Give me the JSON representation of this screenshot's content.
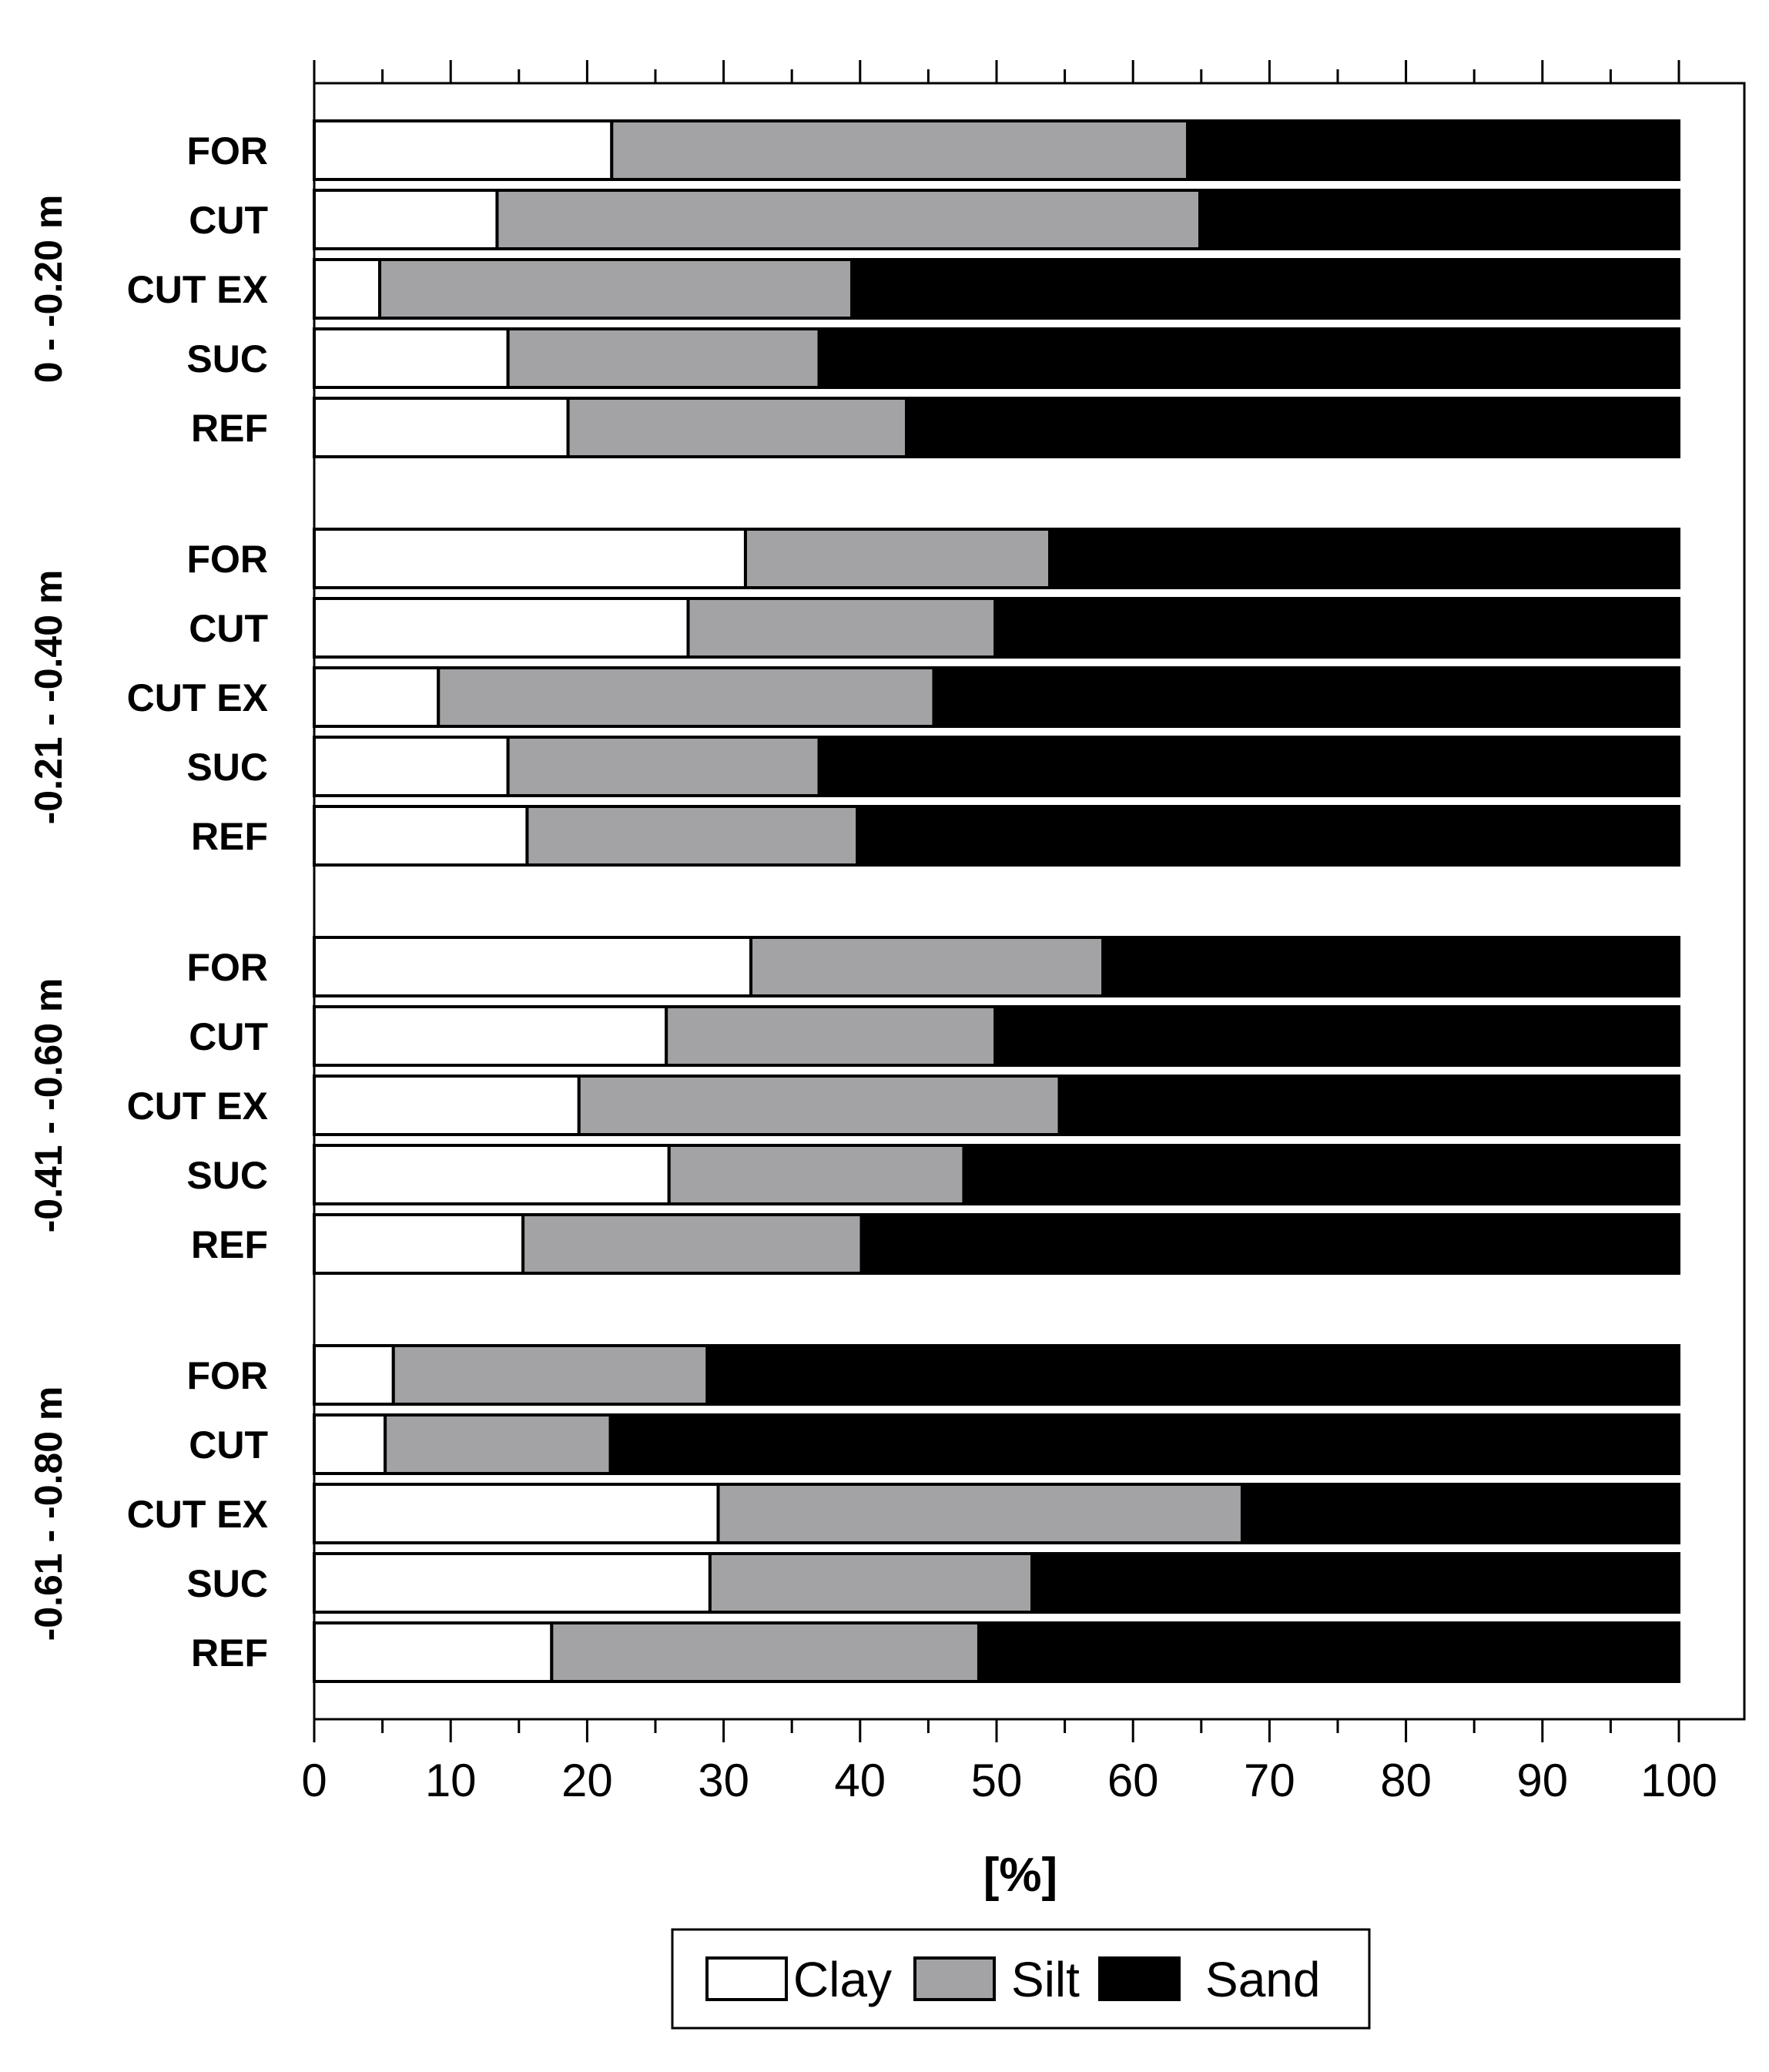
{
  "chart_data": {
    "type": "bar",
    "orientation": "horizontal",
    "stacked": true,
    "xlabel": "[%]",
    "xlim": [
      0,
      100
    ],
    "xticks": [
      0,
      10,
      20,
      30,
      40,
      50,
      60,
      70,
      80,
      90,
      100
    ],
    "series_names": [
      "Clay",
      "Silt",
      "Sand"
    ],
    "colors": {
      "Clay": "#ffffff",
      "Silt": "#a3a3a6",
      "Sand": "#000000"
    },
    "legend": {
      "position": "bottom-center",
      "entries": [
        "Clay",
        "Silt",
        "Sand"
      ]
    },
    "groups": [
      {
        "depth": "0 - -0.20 m",
        "bars": [
          {
            "category": "FOR",
            "clay": 21.8,
            "silt": 42.2,
            "sand": 36.0
          },
          {
            "category": "CUT",
            "clay": 13.4,
            "silt": 51.5,
            "sand": 35.1
          },
          {
            "category": "CUT EX",
            "clay": 4.8,
            "silt": 34.6,
            "sand": 60.6
          },
          {
            "category": "SUC",
            "clay": 14.2,
            "silt": 22.8,
            "sand": 63.0
          },
          {
            "category": "REF",
            "clay": 18.6,
            "silt": 24.8,
            "sand": 56.6
          }
        ]
      },
      {
        "depth": "-0.21 - -0.40 m",
        "bars": [
          {
            "category": "FOR",
            "clay": 31.6,
            "silt": 22.3,
            "sand": 46.1
          },
          {
            "category": "CUT",
            "clay": 27.4,
            "silt": 22.5,
            "sand": 50.1
          },
          {
            "category": "CUT EX",
            "clay": 9.1,
            "silt": 36.3,
            "sand": 54.6
          },
          {
            "category": "SUC",
            "clay": 14.2,
            "silt": 22.8,
            "sand": 63.0
          },
          {
            "category": "REF",
            "clay": 15.6,
            "silt": 24.2,
            "sand": 60.2
          }
        ]
      },
      {
        "depth": "-0.41 - -0.60 m",
        "bars": [
          {
            "category": "FOR",
            "clay": 32.0,
            "silt": 25.8,
            "sand": 42.2
          },
          {
            "category": "CUT",
            "clay": 25.8,
            "silt": 24.1,
            "sand": 50.1
          },
          {
            "category": "CUT EX",
            "clay": 19.4,
            "silt": 35.2,
            "sand": 45.4
          },
          {
            "category": "SUC",
            "clay": 26.0,
            "silt": 21.6,
            "sand": 52.4
          },
          {
            "category": "REF",
            "clay": 15.3,
            "silt": 24.8,
            "sand": 59.9
          }
        ]
      },
      {
        "depth": "-0.61 - -0.80 m",
        "bars": [
          {
            "category": "FOR",
            "clay": 5.8,
            "silt": 23.0,
            "sand": 71.2
          },
          {
            "category": "CUT",
            "clay": 5.2,
            "silt": 16.5,
            "sand": 78.3
          },
          {
            "category": "CUT EX",
            "clay": 29.6,
            "silt": 38.4,
            "sand": 32.0
          },
          {
            "category": "SUC",
            "clay": 29.0,
            "silt": 23.6,
            "sand": 47.4
          },
          {
            "category": "REF",
            "clay": 17.4,
            "silt": 31.3,
            "sand": 51.3
          }
        ]
      }
    ]
  }
}
